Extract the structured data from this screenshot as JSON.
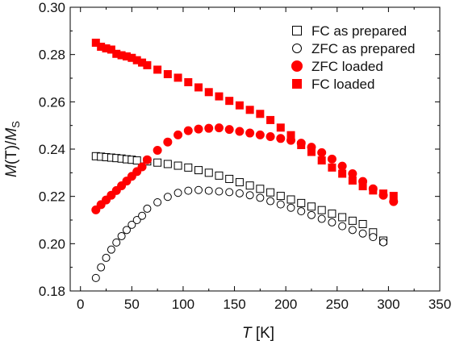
{
  "chart_data": {
    "type": "scatter",
    "title": "",
    "xlabel": {
      "italic": "T",
      "rest": " [K]"
    },
    "ylabel": {
      "italic1": "M",
      "mid": "(T)/",
      "italic2": "M",
      "sub": "S"
    },
    "xlim": [
      -10,
      350
    ],
    "ylim": [
      0.18,
      0.3
    ],
    "x_ticks": [
      0,
      50,
      100,
      150,
      200,
      250,
      300,
      350
    ],
    "y_ticks": [
      0.18,
      0.2,
      0.22,
      0.24,
      0.26,
      0.28,
      0.3
    ],
    "y_tick_labels": [
      "0.18",
      "0.20",
      "0.22",
      "0.24",
      "0.26",
      "0.28",
      "0.30"
    ],
    "legend_position": "top-right",
    "series": [
      {
        "name": "FC as prepared",
        "marker": "square-open",
        "color": "#000000",
        "points": [
          [
            15,
            0.237
          ],
          [
            20,
            0.2368
          ],
          [
            25,
            0.2366
          ],
          [
            30,
            0.2364
          ],
          [
            35,
            0.2362
          ],
          [
            40,
            0.236
          ],
          [
            45,
            0.2357
          ],
          [
            50,
            0.2355
          ],
          [
            55,
            0.2352
          ],
          [
            65,
            0.2348
          ],
          [
            75,
            0.2343
          ],
          [
            85,
            0.2337
          ],
          [
            95,
            0.233
          ],
          [
            105,
            0.2322
          ],
          [
            115,
            0.2311
          ],
          [
            125,
            0.23
          ],
          [
            135,
            0.2288
          ],
          [
            145,
            0.2274
          ],
          [
            155,
            0.226
          ],
          [
            165,
            0.2246
          ],
          [
            175,
            0.2232
          ],
          [
            185,
            0.2217
          ],
          [
            195,
            0.2202
          ],
          [
            205,
            0.2187
          ],
          [
            215,
            0.2172
          ],
          [
            225,
            0.2157
          ],
          [
            235,
            0.2142
          ],
          [
            245,
            0.2127
          ],
          [
            255,
            0.2112
          ],
          [
            265,
            0.2097
          ],
          [
            275,
            0.2083
          ],
          [
            285,
            0.2048
          ],
          [
            295,
            0.2013
          ]
        ]
      },
      {
        "name": "ZFC as prepared",
        "marker": "circle-open",
        "color": "#000000",
        "points": [
          [
            15,
            0.1855
          ],
          [
            20,
            0.19
          ],
          [
            25,
            0.194
          ],
          [
            30,
            0.1975
          ],
          [
            35,
            0.2005
          ],
          [
            40,
            0.2032
          ],
          [
            45,
            0.2058
          ],
          [
            50,
            0.208
          ],
          [
            55,
            0.21
          ],
          [
            60,
            0.2118
          ],
          [
            65,
            0.2148
          ],
          [
            75,
            0.2175
          ],
          [
            85,
            0.2198
          ],
          [
            95,
            0.2215
          ],
          [
            105,
            0.2224
          ],
          [
            115,
            0.2227
          ],
          [
            125,
            0.2224
          ],
          [
            135,
            0.2221
          ],
          [
            145,
            0.2218
          ],
          [
            155,
            0.2213
          ],
          [
            165,
            0.2205
          ],
          [
            175,
            0.2194
          ],
          [
            185,
            0.218
          ],
          [
            195,
            0.2166
          ],
          [
            205,
            0.2152
          ],
          [
            215,
            0.2137
          ],
          [
            225,
            0.2121
          ],
          [
            235,
            0.2105
          ],
          [
            245,
            0.209
          ],
          [
            255,
            0.2074
          ],
          [
            265,
            0.2058
          ],
          [
            275,
            0.2043
          ],
          [
            285,
            0.2028
          ],
          [
            295,
            0.2006
          ]
        ]
      },
      {
        "name": "ZFC loaded",
        "marker": "circle-filled",
        "color": "#ff0000",
        "points": [
          [
            15,
            0.2143
          ],
          [
            20,
            0.2165
          ],
          [
            25,
            0.2185
          ],
          [
            30,
            0.2205
          ],
          [
            35,
            0.2225
          ],
          [
            40,
            0.2245
          ],
          [
            45,
            0.2265
          ],
          [
            50,
            0.2285
          ],
          [
            55,
            0.2305
          ],
          [
            60,
            0.2325
          ],
          [
            65,
            0.2355
          ],
          [
            75,
            0.2395
          ],
          [
            85,
            0.243
          ],
          [
            95,
            0.246
          ],
          [
            105,
            0.2478
          ],
          [
            115,
            0.2485
          ],
          [
            125,
            0.2488
          ],
          [
            135,
            0.249
          ],
          [
            145,
            0.2483
          ],
          [
            155,
            0.2475
          ],
          [
            165,
            0.2468
          ],
          [
            175,
            0.246
          ],
          [
            185,
            0.2453
          ],
          [
            195,
            0.2445
          ],
          [
            205,
            0.2437
          ],
          [
            215,
            0.2425
          ],
          [
            225,
            0.2408
          ],
          [
            235,
            0.2385
          ],
          [
            245,
            0.2358
          ],
          [
            255,
            0.2328
          ],
          [
            265,
            0.2296
          ],
          [
            275,
            0.2263
          ],
          [
            285,
            0.2232
          ],
          [
            295,
            0.2205
          ],
          [
            305,
            0.2178
          ]
        ]
      },
      {
        "name": "FC loaded",
        "marker": "square-filled",
        "color": "#ff0000",
        "points": [
          [
            15,
            0.285
          ],
          [
            20,
            0.2833
          ],
          [
            25,
            0.2826
          ],
          [
            30,
            0.2821
          ],
          [
            35,
            0.2803
          ],
          [
            40,
            0.2797
          ],
          [
            45,
            0.2792
          ],
          [
            50,
            0.2786
          ],
          [
            55,
            0.2776
          ],
          [
            60,
            0.2766
          ],
          [
            65,
            0.2755
          ],
          [
            75,
            0.2736
          ],
          [
            85,
            0.2717
          ],
          [
            95,
            0.2702
          ],
          [
            105,
            0.2683
          ],
          [
            115,
            0.2661
          ],
          [
            125,
            0.2641
          ],
          [
            135,
            0.2623
          ],
          [
            145,
            0.2604
          ],
          [
            155,
            0.2585
          ],
          [
            165,
            0.2566
          ],
          [
            175,
            0.2549
          ],
          [
            185,
            0.2523
          ],
          [
            195,
            0.2491
          ],
          [
            205,
            0.2459
          ],
          [
            215,
            0.2417
          ],
          [
            225,
            0.2388
          ],
          [
            235,
            0.2352
          ],
          [
            245,
            0.2322
          ],
          [
            255,
            0.2296
          ],
          [
            265,
            0.2267
          ],
          [
            275,
            0.2243
          ],
          [
            285,
            0.2225
          ],
          [
            295,
            0.2212
          ],
          [
            305,
            0.2202
          ]
        ]
      }
    ]
  }
}
